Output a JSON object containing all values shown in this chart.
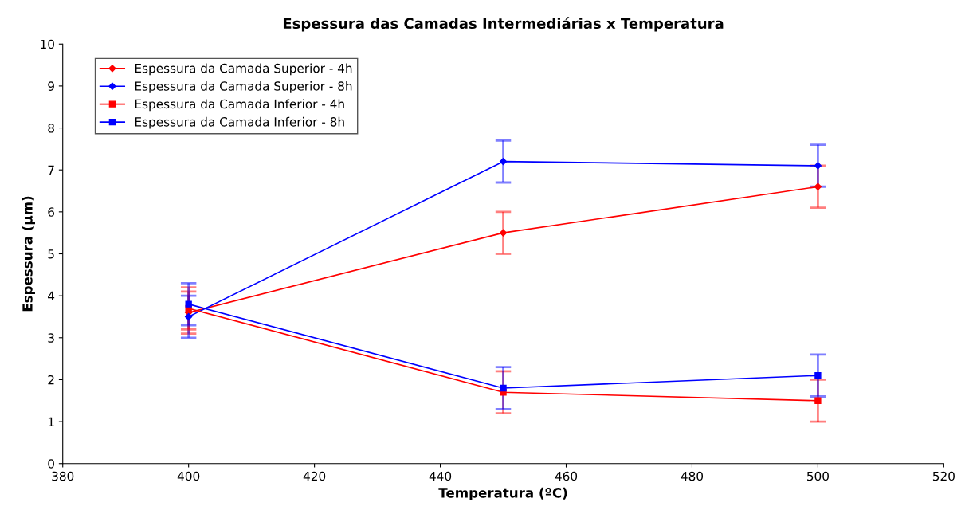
{
  "chart_data": {
    "type": "line",
    "title": "Espessura das Camadas Intermediárias x Temperatura",
    "xlabel": "Temperatura (ºC)",
    "ylabel": "Espessura (µm)",
    "x": [
      400,
      450,
      500
    ],
    "xlim": [
      380,
      520
    ],
    "xticks": [
      380,
      400,
      420,
      440,
      460,
      480,
      500,
      520
    ],
    "ylim": [
      0,
      10
    ],
    "yticks": [
      0,
      1,
      2,
      3,
      4,
      5,
      6,
      7,
      8,
      9,
      10
    ],
    "grid": false,
    "legend": "top left",
    "series": [
      {
        "name": "Espessura da Camada Superior - 4h",
        "color": "#ff0000",
        "marker": "diamond",
        "values": [
          3.6,
          5.5,
          6.6
        ],
        "errors": [
          0.5,
          0.5,
          0.5
        ]
      },
      {
        "name": "Espessura da Camada Superior - 8h",
        "color": "#0000ff",
        "marker": "diamond",
        "values": [
          3.5,
          7.2,
          7.1
        ],
        "errors": [
          0.5,
          0.5,
          0.5
        ]
      },
      {
        "name": "Espessura da Camada Inferior - 4h",
        "color": "#ff0000",
        "marker": "square",
        "values": [
          3.7,
          1.7,
          1.5
        ],
        "errors": [
          0.5,
          0.5,
          0.5
        ]
      },
      {
        "name": "Espessura da Camada Inferior - 8h",
        "color": "#0000ff",
        "marker": "square",
        "values": [
          3.8,
          1.8,
          2.1
        ],
        "errors": [
          0.5,
          0.5,
          0.5
        ]
      }
    ]
  }
}
